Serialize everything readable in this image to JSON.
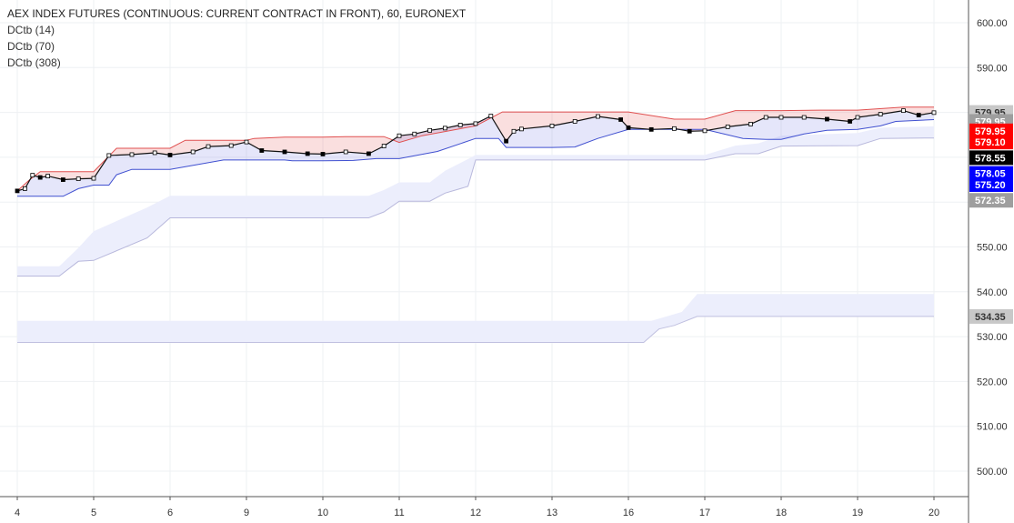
{
  "chart_data": {
    "type": "line",
    "title": "AEX INDEX FUTURES (CONTINUOUS: CURRENT CONTRACT IN FRONT), 60, EURONEXT",
    "indicators": [
      "DCtb (14)",
      "DCtb (70)",
      "DCtb (308)"
    ],
    "x_ticks": [
      "4",
      "5",
      "6",
      "9",
      "10",
      "11",
      "12",
      "13",
      "16",
      "17",
      "18",
      "19",
      "20"
    ],
    "y_ticks": [
      "600.00",
      "590.00",
      "580.00",
      "570.00",
      "560.00",
      "550.00",
      "540.00",
      "530.00",
      "520.00",
      "510.00",
      "500.00"
    ],
    "ylim": [
      495,
      602
    ],
    "price_badges": [
      {
        "label": "579.95",
        "value": 580.0,
        "bg": "#c8c8c8",
        "fg": "#333333"
      },
      {
        "label": "579.95",
        "value": 578.0,
        "bg": "#9e9e9e",
        "fg": "#ffffff"
      },
      {
        "label": "579.95",
        "value": 575.9,
        "bg": "#ff0000",
        "fg": "#ffffff"
      },
      {
        "label": "579.10",
        "value": 573.4,
        "bg": "#ff0000",
        "fg": "#ffffff"
      },
      {
        "label": "578.55",
        "value": 569.9,
        "bg": "#000000",
        "fg": "#ffffff"
      },
      {
        "label": "578.05",
        "value": 566.4,
        "bg": "#0000ff",
        "fg": "#ffffff"
      },
      {
        "label": "575.20",
        "value": 563.9,
        "bg": "#0000ff",
        "fg": "#ffffff"
      },
      {
        "label": "572.35",
        "value": 560.4,
        "bg": "#9e9e9e",
        "fg": "#ffffff"
      },
      {
        "label": "534.35",
        "value": 534.5,
        "bg": "#c8c8c8",
        "fg": "#333333"
      }
    ],
    "series": [
      {
        "name": "DCtb (14) upper",
        "color": "#e05050",
        "x": [
          0,
          0.15,
          0.3,
          1.0,
          1.3,
          2.0,
          2.2,
          3.0,
          3.1,
          3.5,
          4.0,
          4.3,
          4.8,
          5.0,
          5.3,
          6.0,
          6.35,
          6.45,
          7.0,
          7.6,
          8.0,
          8.6,
          9.0,
          9.4,
          9.5,
          10.0,
          10.5,
          11.0,
          11.6,
          12.0
        ],
        "values": [
          562.5,
          564.8,
          566.8,
          566.8,
          572.0,
          572.0,
          573.8,
          573.8,
          574.2,
          574.5,
          574.5,
          574.6,
          574.6,
          573.3,
          574.8,
          577.0,
          580.1,
          580.1,
          580.1,
          580.1,
          580.1,
          578.5,
          578.5,
          580.4,
          580.4,
          580.4,
          580.5,
          580.5,
          581.2,
          581.2
        ]
      },
      {
        "name": "DCtb (14) lower",
        "color": "#4050d0",
        "x": [
          0,
          0.6,
          0.8,
          1.0,
          1.2,
          1.3,
          1.5,
          2.0,
          2.7,
          3.0,
          3.5,
          3.6,
          4.0,
          4.4,
          4.7,
          5.0,
          5.5,
          6.0,
          6.3,
          6.4,
          7.0,
          7.3,
          7.6,
          8.0,
          8.5,
          9.0,
          9.5,
          9.8,
          10.0,
          10.3,
          10.6,
          11.0,
          11.3,
          11.5,
          12.0
        ],
        "values": [
          561.3,
          561.3,
          563.0,
          563.8,
          563.8,
          566.1,
          567.3,
          567.3,
          569.4,
          569.4,
          569.4,
          569.2,
          569.2,
          569.3,
          569.7,
          569.7,
          571.3,
          574.2,
          574.2,
          572.2,
          572.2,
          572.3,
          574.2,
          576.2,
          576.2,
          576.2,
          574.2,
          574.0,
          574.0,
          575.2,
          576.0,
          576.2,
          577.0,
          578.0,
          578.4
        ]
      },
      {
        "name": "DCtb (70) upper",
        "color": "#f0f0ff",
        "x": [
          0,
          0.55,
          0.8,
          1.0,
          1.7,
          2.0,
          4.6,
          4.8,
          5.0,
          5.4,
          5.6,
          5.9,
          6.0,
          6.3,
          7.0,
          8.0,
          9.0,
          9.4,
          9.7,
          10.0,
          11.0,
          11.3,
          12.0
        ],
        "values": [
          545.7,
          545.7,
          549.8,
          553.5,
          558.8,
          561.4,
          561.4,
          562.7,
          564.4,
          564.4,
          567.0,
          569.6,
          570.5,
          570.5,
          570.5,
          570.5,
          570.5,
          572.6,
          573.1,
          574.8,
          575.4,
          576.6,
          576.9
        ]
      },
      {
        "name": "DCtb (70) lower",
        "color": "#c0c0e0",
        "x": [
          0,
          0.55,
          0.8,
          1.0,
          1.7,
          2.0,
          4.6,
          4.8,
          5.0,
          5.4,
          5.6,
          5.9,
          6.0,
          6.3,
          7.0,
          8.0,
          9.0,
          9.4,
          9.7,
          10.0,
          11.0,
          11.3,
          12.0
        ],
        "values": [
          543.5,
          543.5,
          546.8,
          547.0,
          552.0,
          556.5,
          556.5,
          557.8,
          560.2,
          560.2,
          562.0,
          563.5,
          569.4,
          569.4,
          569.4,
          569.4,
          569.4,
          570.8,
          570.8,
          572.5,
          572.6,
          574.2,
          574.3
        ]
      },
      {
        "name": "DCtb (308) upper",
        "color": "#f0f0ff",
        "x": [
          0,
          8.1,
          8.3,
          8.7,
          8.9,
          12.0
        ],
        "values": [
          533.5,
          533.5,
          533.5,
          535.5,
          539.5,
          539.5
        ]
      },
      {
        "name": "DCtb (308) lower",
        "color": "#c0c0e0",
        "x": [
          0,
          8.2,
          8.4,
          8.6,
          8.9,
          12.0
        ],
        "values": [
          528.7,
          528.7,
          531.7,
          532.5,
          534.5,
          534.5
        ]
      },
      {
        "name": "Price",
        "color": "#000000",
        "x": [
          0,
          0.1,
          0.2,
          0.3,
          0.4,
          0.6,
          0.8,
          1.0,
          1.2,
          1.5,
          1.8,
          2.0,
          2.3,
          2.5,
          2.8,
          3.0,
          3.2,
          3.5,
          3.8,
          4.0,
          4.3,
          4.6,
          4.8,
          5.0,
          5.2,
          5.4,
          5.6,
          5.8,
          6.0,
          6.2,
          6.4,
          6.5,
          6.6,
          7.0,
          7.3,
          7.6,
          7.9,
          8.0,
          8.3,
          8.6,
          8.8,
          9.0,
          9.3,
          9.6,
          9.8,
          10.0,
          10.3,
          10.6,
          10.9,
          11.0,
          11.3,
          11.6,
          11.8,
          12.0
        ],
        "values": [
          562.5,
          563.0,
          566.0,
          565.5,
          565.8,
          565.0,
          565.2,
          565.3,
          570.4,
          570.6,
          571.0,
          570.5,
          571.2,
          572.4,
          572.6,
          573.4,
          571.5,
          571.2,
          570.8,
          570.7,
          571.2,
          570.8,
          572.5,
          574.8,
          575.2,
          576.0,
          576.5,
          577.2,
          577.5,
          579.2,
          573.6,
          575.8,
          576.3,
          577.0,
          578.0,
          579.1,
          578.4,
          576.6,
          576.2,
          576.4,
          575.8,
          575.9,
          576.8,
          577.4,
          578.9,
          578.9,
          578.9,
          578.5,
          578.0,
          578.9,
          579.6,
          580.4,
          579.4,
          579.95
        ]
      }
    ]
  }
}
